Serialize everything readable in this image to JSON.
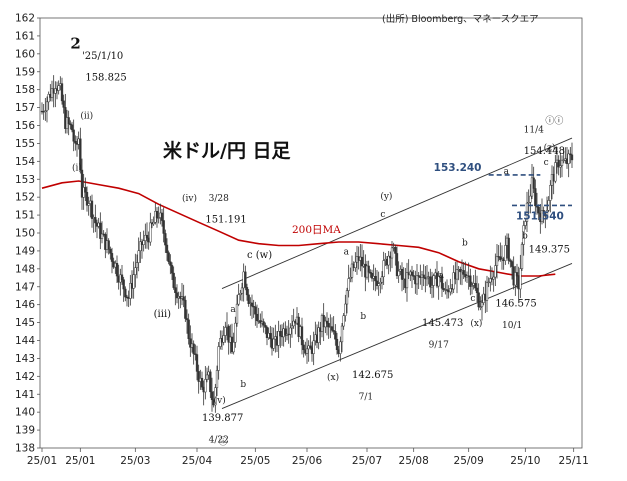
{
  "chart_data": {
    "type": "candlestick",
    "title": "米ドル/円 日足",
    "source": "(出所) Bloomberg、マネースクエア",
    "ylim": [
      138,
      162
    ],
    "yticks": [
      138,
      139,
      140,
      141,
      142,
      143,
      144,
      145,
      146,
      147,
      148,
      149,
      150,
      151,
      152,
      153,
      154,
      155,
      156,
      157,
      158,
      159,
      160,
      161,
      162
    ],
    "xticks": [
      "25/01",
      "25/01",
      "25/03",
      "25/04",
      "25/05",
      "25/06",
      "25/07",
      "25/08",
      "25/09",
      "25/10",
      "25/11"
    ],
    "xrange": [
      0,
      318
    ],
    "xtick_positions": [
      0,
      23,
      56,
      93,
      128,
      159,
      195,
      223,
      256,
      290,
      319
    ],
    "ma_label": "200日MA",
    "ma": [
      [
        0,
        152.5
      ],
      [
        12,
        152.8
      ],
      [
        22,
        152.9
      ],
      [
        34,
        152.7
      ],
      [
        46,
        152.5
      ],
      [
        58,
        152.2
      ],
      [
        70,
        151.6
      ],
      [
        82,
        151.1
      ],
      [
        94,
        150.6
      ],
      [
        106,
        150.1
      ],
      [
        118,
        149.6
      ],
      [
        130,
        149.4
      ],
      [
        142,
        149.3
      ],
      [
        154,
        149.3
      ],
      [
        166,
        149.4
      ],
      [
        178,
        149.5
      ],
      [
        190,
        149.5
      ],
      [
        202,
        149.4
      ],
      [
        214,
        149.3
      ],
      [
        226,
        149.2
      ],
      [
        238,
        148.9
      ],
      [
        250,
        148.4
      ],
      [
        262,
        148.0
      ],
      [
        274,
        147.8
      ],
      [
        286,
        147.6
      ],
      [
        298,
        147.6
      ],
      [
        308,
        147.7
      ]
    ],
    "channel_upper": [
      [
        108,
        146.9
      ],
      [
        318,
        155.3
      ]
    ],
    "channel_lower": [
      [
        108,
        140.2
      ],
      [
        318,
        148.3
      ]
    ],
    "hlines": [
      {
        "label": "153.240",
        "value": 153.24,
        "x1": 268,
        "x2": 299,
        "color": "#2f4f7f"
      },
      {
        "label": "151.540",
        "value": 151.54,
        "x1": 282,
        "x2": 318,
        "color": "#2f4f7f"
      }
    ],
    "anchors": [
      [
        0,
        156.8
      ],
      [
        4,
        157.6
      ],
      [
        8,
        158.4
      ],
      [
        11,
        157.9
      ],
      [
        14,
        156.2
      ],
      [
        18,
        155.8
      ],
      [
        20,
        154.6
      ],
      [
        22,
        155.3
      ],
      [
        24,
        152.2
      ],
      [
        28,
        151.9
      ],
      [
        32,
        150.6
      ],
      [
        36,
        149.8
      ],
      [
        40,
        149.1
      ],
      [
        44,
        148.2
      ],
      [
        48,
        147.2
      ],
      [
        52,
        146.4
      ],
      [
        56,
        148.1
      ],
      [
        60,
        149.4
      ],
      [
        64,
        149.9
      ],
      [
        68,
        150.8
      ],
      [
        70,
        151.1
      ],
      [
        74,
        149.7
      ],
      [
        78,
        147.4
      ],
      [
        82,
        146.6
      ],
      [
        86,
        145.6
      ],
      [
        88,
        144.3
      ],
      [
        92,
        142.8
      ],
      [
        96,
        141.3
      ],
      [
        100,
        141.9
      ],
      [
        103,
        140.3
      ],
      [
        106,
        143.6
      ],
      [
        110,
        145.1
      ],
      [
        114,
        143.3
      ],
      [
        118,
        146.4
      ],
      [
        121,
        147.8
      ],
      [
        124,
        146.4
      ],
      [
        128,
        145.5
      ],
      [
        132,
        144.8
      ],
      [
        136,
        144.2
      ],
      [
        140,
        143.8
      ],
      [
        144,
        144.5
      ],
      [
        148,
        144.8
      ],
      [
        152,
        145.3
      ],
      [
        156,
        144.0
      ],
      [
        160,
        143.3
      ],
      [
        164,
        143.9
      ],
      [
        168,
        145.0
      ],
      [
        172,
        144.7
      ],
      [
        176,
        144.1
      ],
      [
        178,
        143.5
      ],
      [
        182,
        146.4
      ],
      [
        186,
        147.9
      ],
      [
        190,
        148.6
      ],
      [
        194,
        147.9
      ],
      [
        198,
        147.2
      ],
      [
        202,
        147.5
      ],
      [
        206,
        148.3
      ],
      [
        210,
        149.3
      ],
      [
        213,
        148.0
      ],
      [
        217,
        147.2
      ],
      [
        221,
        147.6
      ],
      [
        226,
        147.4
      ],
      [
        230,
        147.8
      ],
      [
        234,
        147.1
      ],
      [
        238,
        147.6
      ],
      [
        242,
        146.6
      ],
      [
        246,
        147.3
      ],
      [
        250,
        147.6
      ],
      [
        254,
        147.9
      ],
      [
        258,
        147.3
      ],
      [
        262,
        146.3
      ],
      [
        264,
        145.9
      ],
      [
        268,
        147.3
      ],
      [
        272,
        148.2
      ],
      [
        276,
        148.6
      ],
      [
        279,
        149.3
      ],
      [
        283,
        147.5
      ],
      [
        286,
        147.1
      ],
      [
        290,
        151.0
      ],
      [
        294,
        152.7
      ],
      [
        297,
        151.4
      ],
      [
        300,
        150.9
      ],
      [
        303,
        151.5
      ],
      [
        306,
        153.0
      ],
      [
        310,
        154.0
      ],
      [
        314,
        153.9
      ],
      [
        318,
        154.2
      ]
    ],
    "annotations": [
      {
        "text": "2",
        "x": 17,
        "y": 160.3
      },
      {
        "text": "'25/1/10",
        "x": 24,
        "y": 159.7
      },
      {
        "text": "158.825",
        "x": 26,
        "y": 158.5
      },
      {
        "text": "(ii)",
        "x": 23,
        "y": 156.4
      },
      {
        "text": "(i)",
        "x": 18,
        "y": 153.5
      },
      {
        "text": "(iv)",
        "x": 84,
        "y": 151.8
      },
      {
        "text": "3/28",
        "x": 100,
        "y": 151.8
      },
      {
        "text": "151.191",
        "x": 98,
        "y": 150.6
      },
      {
        "text": "(iii)",
        "x": 67,
        "y": 145.3
      },
      {
        "text": "c (w)",
        "x": 123,
        "y": 148.6
      },
      {
        "text": "a",
        "x": 113,
        "y": 145.6
      },
      {
        "text": "b",
        "x": 119,
        "y": 141.4
      },
      {
        "text": "139.877",
        "x": 96,
        "y": 139.5
      },
      {
        "text": "4/22",
        "x": 100,
        "y": 138.3
      },
      {
        "text": "(v)",
        "x": 103,
        "y": 140.5
      },
      {
        "text": "a",
        "x": 181,
        "y": 148.8
      },
      {
        "text": "b",
        "x": 191,
        "y": 145.2
      },
      {
        "text": "(x)",
        "x": 171,
        "y": 141.8
      },
      {
        "text": "142.675",
        "x": 186,
        "y": 141.9
      },
      {
        "text": "7/1",
        "x": 190,
        "y": 140.7
      },
      {
        "text": "(y)",
        "x": 203,
        "y": 151.9
      },
      {
        "text": "c",
        "x": 203,
        "y": 150.9
      },
      {
        "text": "145.473",
        "x": 228,
        "y": 144.8
      },
      {
        "text": "9/17",
        "x": 232,
        "y": 143.6
      },
      {
        "text": "a",
        "x": 238,
        "y": 147.5
      },
      {
        "text": "b",
        "x": 252,
        "y": 149.3
      },
      {
        "text": "c",
        "x": 257,
        "y": 146.2
      },
      {
        "text": "(x)",
        "x": 257,
        "y": 144.8
      },
      {
        "text": "146.575",
        "x": 272,
        "y": 145.9
      },
      {
        "text": "10/1",
        "x": 276,
        "y": 144.7
      },
      {
        "text": "a",
        "x": 277,
        "y": 153.3
      },
      {
        "text": "b",
        "x": 288,
        "y": 149.7
      },
      {
        "text": "149.375",
        "x": 292,
        "y": 148.9
      },
      {
        "text": "11/4",
        "x": 289,
        "y": 155.6
      },
      {
        "text": "154.448",
        "x": 289,
        "y": 154.4
      },
      {
        "text": "(z)",
        "x": 301,
        "y": 154.6
      },
      {
        "text": "c",
        "x": 301,
        "y": 153.8
      },
      {
        "text": "ⓘ",
        "x": 106,
        "y": 138.2
      },
      {
        "text": "ⓘⓘ",
        "x": 302,
        "y": 156.1
      }
    ]
  }
}
